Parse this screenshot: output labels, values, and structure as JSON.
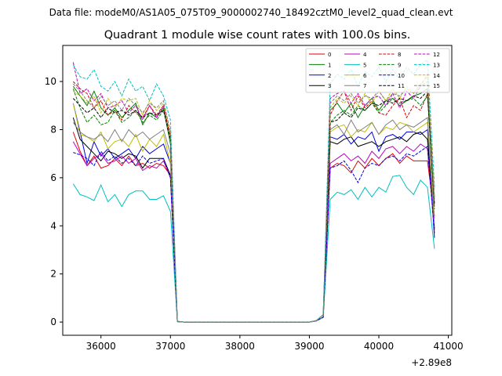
{
  "chart_data": {
    "type": "line",
    "suptitle": "Data file: modeM0/AS1A05_075T09_9000002740_18492cztM0_level2_quad_clean.evt",
    "title": "Quadrant 1 module wise count rates with 100.0s bins.",
    "xlabel": "",
    "ylabel": "",
    "x_offset_label": "+2.89e8",
    "xlim": [
      35450,
      41050
    ],
    "ylim": [
      -0.55,
      11.5
    ],
    "xticks": [
      36000,
      37000,
      38000,
      39000,
      40000,
      41000
    ],
    "yticks": [
      0,
      2,
      4,
      6,
      8,
      10
    ],
    "xtick_labels": [
      "36000",
      "37000",
      "38000",
      "39000",
      "40000",
      "41000"
    ],
    "ytick_labels": [
      "0",
      "2",
      "4",
      "6",
      "8",
      "10"
    ],
    "legend_position": "upper right",
    "legend_columns": 4,
    "x": [
      35600,
      35700,
      35800,
      35900,
      36000,
      36100,
      36200,
      36300,
      36400,
      36500,
      36600,
      36700,
      36800,
      36900,
      37000,
      37100,
      37200,
      37300,
      37400,
      37500,
      37600,
      37700,
      37800,
      37900,
      38000,
      38100,
      38200,
      38300,
      38400,
      38500,
      38600,
      38700,
      38800,
      38900,
      39000,
      39100,
      39200,
      39300,
      39400,
      39500,
      39600,
      39700,
      39800,
      39900,
      40000,
      40100,
      40200,
      40300,
      40400,
      40500,
      40600,
      40700,
      40800
    ],
    "series": [
      {
        "name": "0",
        "color": "#e00000",
        "dashed": false,
        "values": [
          7.9,
          7.1,
          6.5,
          6.9,
          6.4,
          6.5,
          6.8,
          6.5,
          6.9,
          6.5,
          6.6,
          6.4,
          6.6,
          6.5,
          6.1,
          0.02,
          0,
          0,
          0,
          0,
          0,
          0,
          0,
          0,
          0,
          0,
          0,
          0,
          0,
          0,
          0,
          0,
          0,
          0,
          0,
          0.05,
          0.2,
          6.4,
          6.6,
          6.5,
          6.2,
          6.7,
          6.4,
          6.8,
          6.5,
          6.8,
          7.0,
          6.6,
          6.9,
          6.7,
          6.7,
          6.7,
          4.4
        ]
      },
      {
        "name": "1",
        "color": "#008000",
        "dashed": false,
        "values": [
          9.8,
          9.4,
          9.0,
          9.6,
          8.9,
          8.6,
          8.9,
          8.5,
          8.8,
          9.1,
          8.2,
          8.7,
          8.5,
          8.9,
          7.4,
          0.03,
          0,
          0,
          0,
          0,
          0,
          0,
          0,
          0,
          0,
          0,
          0,
          0,
          0,
          0,
          0,
          0,
          0,
          0,
          0,
          0.06,
          0.3,
          8.8,
          9.1,
          8.7,
          9.1,
          8.5,
          9.0,
          9.3,
          8.8,
          9.2,
          9.3,
          9.0,
          9.2,
          9.4,
          9.5,
          9.7,
          5.2
        ]
      },
      {
        "name": "2",
        "color": "#0000e0",
        "dashed": false,
        "values": [
          9.1,
          7.9,
          6.6,
          7.5,
          6.9,
          7.2,
          6.8,
          7.0,
          7.2,
          6.8,
          7.3,
          7.0,
          7.2,
          7.4,
          6.6,
          0.02,
          0,
          0,
          0,
          0,
          0,
          0,
          0,
          0,
          0,
          0,
          0,
          0,
          0,
          0,
          0,
          0,
          0,
          0,
          0,
          0.05,
          0.2,
          7.7,
          7.6,
          7.8,
          7.4,
          7.7,
          7.6,
          7.9,
          7.1,
          7.7,
          7.8,
          7.6,
          7.9,
          7.9,
          7.8,
          8.0,
          3.5
        ]
      },
      {
        "name": "3",
        "color": "#000000",
        "dashed": false,
        "values": [
          8.5,
          7.6,
          7.3,
          7.0,
          6.7,
          7.1,
          7.0,
          6.8,
          7.0,
          6.9,
          6.4,
          6.8,
          6.8,
          6.8,
          6.1,
          0.02,
          0,
          0,
          0,
          0,
          0,
          0,
          0,
          0,
          0,
          0,
          0,
          0,
          0,
          0,
          0,
          0,
          0,
          0,
          0,
          0.05,
          0.2,
          7.5,
          7.4,
          7.6,
          7.7,
          7.3,
          7.4,
          7.5,
          7.3,
          7.5,
          7.6,
          7.7,
          7.5,
          7.8,
          7.9,
          7.6,
          3.9
        ]
      },
      {
        "name": "4",
        "color": "#bf00bf",
        "dashed": false,
        "values": [
          7.5,
          7.0,
          6.5,
          6.8,
          7.0,
          6.6,
          6.7,
          6.9,
          6.6,
          6.8,
          6.3,
          6.5,
          6.4,
          6.7,
          6.0,
          0.02,
          0,
          0,
          0,
          0,
          0,
          0,
          0,
          0,
          0,
          0,
          0,
          0,
          0,
          0,
          0,
          0,
          0,
          0,
          0,
          0.05,
          0.2,
          6.6,
          6.8,
          7.0,
          6.7,
          6.9,
          6.6,
          7.1,
          6.8,
          7.2,
          7.3,
          7.0,
          7.3,
          7.1,
          7.4,
          7.2,
          3.8
        ]
      },
      {
        "name": "5",
        "color": "#00bfbf",
        "dashed": false,
        "values": [
          5.75,
          5.3,
          5.2,
          5.05,
          5.7,
          5.0,
          5.3,
          4.8,
          5.3,
          5.45,
          5.45,
          5.1,
          5.1,
          5.25,
          4.6,
          0.02,
          0,
          0,
          0,
          0,
          0,
          0,
          0,
          0,
          0,
          0,
          0,
          0,
          0,
          0,
          0,
          0,
          0,
          0,
          0,
          0.05,
          0.2,
          5.1,
          5.4,
          5.3,
          5.5,
          5.1,
          5.6,
          5.2,
          5.6,
          5.4,
          6.05,
          6.1,
          5.6,
          5.3,
          5.9,
          5.6,
          3.05
        ]
      },
      {
        "name": "6",
        "color": "#bfbf00",
        "dashed": false,
        "values": [
          9.1,
          7.8,
          7.7,
          7.5,
          7.9,
          7.2,
          7.5,
          7.6,
          7.3,
          7.8,
          7.1,
          7.6,
          7.3,
          7.8,
          6.6,
          0.02,
          0,
          0,
          0,
          0,
          0,
          0,
          0,
          0,
          0,
          0,
          0,
          0,
          0,
          0,
          0,
          0,
          0,
          0,
          0,
          0.05,
          0.2,
          7.9,
          8.1,
          8.2,
          7.7,
          8.0,
          7.9,
          8.3,
          7.8,
          8.1,
          8.0,
          8.3,
          8.2,
          7.9,
          8.1,
          8.3,
          4.1
        ]
      },
      {
        "name": "7",
        "color": "#808080",
        "dashed": false,
        "values": [
          8.3,
          7.9,
          7.7,
          7.6,
          7.8,
          7.5,
          8.0,
          7.5,
          8.0,
          7.7,
          7.9,
          7.6,
          7.8,
          8.0,
          7.0,
          0.02,
          0,
          0,
          0,
          0,
          0,
          0,
          0,
          0,
          0,
          0,
          0,
          0,
          0,
          0,
          0,
          0,
          0,
          0,
          0,
          0.05,
          0.2,
          8.0,
          8.2,
          7.8,
          8.4,
          7.9,
          8.1,
          8.3,
          7.8,
          8.2,
          8.4,
          8.0,
          8.2,
          8.1,
          8.3,
          8.5,
          4.3
        ]
      },
      {
        "name": "8",
        "color": "#e00000",
        "dashed": true,
        "values": [
          10.0,
          9.7,
          9.5,
          8.9,
          9.2,
          8.6,
          8.8,
          8.4,
          9.0,
          8.7,
          8.5,
          9.0,
          8.6,
          9.0,
          7.7,
          0.03,
          0,
          0,
          0,
          0,
          0,
          0,
          0,
          0,
          0,
          0,
          0,
          0,
          0,
          0,
          0,
          0,
          0,
          0,
          0,
          0.06,
          0.3,
          8.6,
          9.2,
          9.6,
          8.8,
          9.4,
          8.9,
          9.2,
          8.7,
          8.6,
          9.0,
          9.3,
          8.5,
          9.0,
          8.8,
          9.5,
          4.8
        ]
      },
      {
        "name": "9",
        "color": "#008000",
        "dashed": true,
        "values": [
          9.7,
          8.9,
          8.3,
          8.6,
          8.2,
          8.3,
          8.8,
          8.3,
          8.5,
          8.8,
          8.3,
          8.6,
          8.4,
          8.8,
          7.6,
          0.03,
          0,
          0,
          0,
          0,
          0,
          0,
          0,
          0,
          0,
          0,
          0,
          0,
          0,
          0,
          0,
          0,
          0,
          0,
          0,
          0.06,
          0.3,
          8.3,
          8.6,
          8.8,
          8.6,
          9.0,
          8.8,
          9.1,
          8.7,
          9.0,
          9.3,
          9.1,
          9.2,
          9.3,
          9.0,
          9.4,
          4.7
        ]
      },
      {
        "name": "10",
        "color": "#0000e0",
        "dashed": true,
        "values": [
          7.05,
          6.95,
          6.8,
          6.5,
          7.1,
          6.7,
          6.9,
          6.6,
          6.8,
          6.5,
          6.9,
          6.6,
          6.7,
          6.8,
          6.0,
          0.02,
          0,
          0,
          0,
          0,
          0,
          0,
          0,
          0,
          0,
          0,
          0,
          0,
          0,
          0,
          0,
          0,
          0,
          0,
          0,
          0.05,
          0.2,
          6.4,
          6.5,
          6.7,
          6.3,
          5.8,
          6.4,
          6.6,
          6.5,
          6.8,
          6.9,
          6.7,
          7.0,
          6.9,
          7.1,
          7.3,
          3.7
        ]
      },
      {
        "name": "11",
        "color": "#000000",
        "dashed": true,
        "values": [
          9.3,
          9.0,
          8.7,
          8.9,
          8.5,
          8.9,
          8.7,
          8.8,
          8.6,
          8.8,
          8.5,
          8.7,
          8.6,
          8.8,
          7.6,
          0.03,
          0,
          0,
          0,
          0,
          0,
          0,
          0,
          0,
          0,
          0,
          0,
          0,
          0,
          0,
          0,
          0,
          0,
          0,
          0,
          0.06,
          0.3,
          8.3,
          8.4,
          8.7,
          8.5,
          8.9,
          8.8,
          9.1,
          9.0,
          9.2,
          9.1,
          9.3,
          9.2,
          9.4,
          9.3,
          9.6,
          4.9
        ]
      },
      {
        "name": "12",
        "color": "#bf00bf",
        "dashed": true,
        "values": [
          10.8,
          9.5,
          9.7,
          9.2,
          9.5,
          8.9,
          9.0,
          9.2,
          8.7,
          9.0,
          8.4,
          9.0,
          8.5,
          9.0,
          7.9,
          0.03,
          0,
          0,
          0,
          0,
          0,
          0,
          0,
          0,
          0,
          0,
          0,
          0,
          0,
          0,
          0,
          0,
          0,
          0,
          0,
          0.06,
          0.3,
          9.3,
          9.5,
          9.6,
          9.1,
          9.5,
          9.0,
          9.3,
          9.4,
          9.0,
          9.5,
          8.9,
          9.6,
          9.3,
          9.8,
          10.3,
          5.0
        ]
      },
      {
        "name": "13",
        "color": "#00bfbf",
        "dashed": true,
        "values": [
          10.7,
          10.2,
          10.1,
          10.5,
          9.8,
          9.6,
          10.0,
          9.4,
          10.1,
          9.6,
          9.8,
          9.2,
          9.9,
          9.4,
          8.4,
          0.03,
          0,
          0,
          0,
          0,
          0,
          0,
          0,
          0,
          0,
          0,
          0,
          0,
          0,
          0,
          0,
          0,
          0,
          0,
          0,
          0.06,
          0.3,
          9.9,
          10.3,
          10.1,
          10.5,
          9.8,
          10.4,
          10.2,
          10.6,
          10.0,
          10.5,
          10.1,
          10.6,
          10.3,
          10.7,
          10.9,
          5.6
        ]
      },
      {
        "name": "14",
        "color": "#bfbf00",
        "dashed": true,
        "values": [
          9.6,
          9.4,
          9.1,
          9.4,
          8.7,
          9.3,
          8.9,
          9.3,
          9.2,
          9.3,
          8.6,
          9.2,
          8.8,
          9.1,
          7.8,
          0.03,
          0,
          0,
          0,
          0,
          0,
          0,
          0,
          0,
          0,
          0,
          0,
          0,
          0,
          0,
          0,
          0,
          0,
          0,
          0,
          0.06,
          0.3,
          8.9,
          9.3,
          9.1,
          9.4,
          9.0,
          9.5,
          9.1,
          9.6,
          9.2,
          9.7,
          9.3,
          9.8,
          9.5,
          9.9,
          10.2,
          5.2
        ]
      },
      {
        "name": "15",
        "color": "#808080",
        "dashed": true,
        "values": [
          9.9,
          9.6,
          9.2,
          8.9,
          9.4,
          9.0,
          9.2,
          8.8,
          9.3,
          9.0,
          8.7,
          9.1,
          8.9,
          9.2,
          7.9,
          0.03,
          0,
          0,
          0,
          0,
          0,
          0,
          0,
          0,
          0,
          0,
          0,
          0,
          0,
          0,
          0,
          0,
          0,
          0,
          0,
          0.06,
          0.3,
          9.1,
          9.4,
          9.2,
          9.5,
          9.1,
          9.4,
          9.3,
          9.6,
          9.2,
          9.5,
          9.4,
          9.7,
          9.5,
          9.8,
          10.0,
          5.1
        ]
      }
    ]
  }
}
